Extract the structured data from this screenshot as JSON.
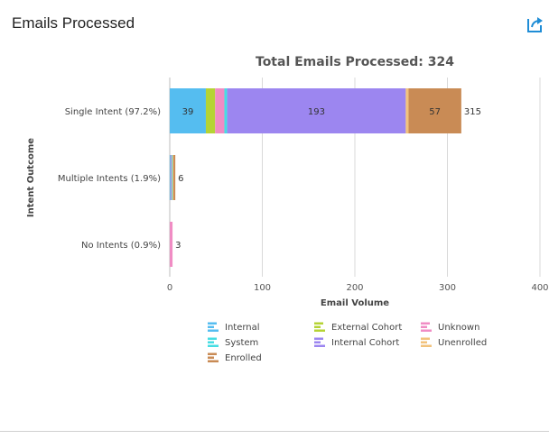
{
  "panel": {
    "title": "Emails Processed",
    "export_icon": "share-export-icon",
    "accent": "#1f8dd6"
  },
  "chart_data": {
    "type": "bar",
    "orientation": "horizontal",
    "stacked": true,
    "title": "Total Emails Processed: 324",
    "xlabel": "Email Volume",
    "ylabel": "Intent Outcome",
    "xlim": [
      0,
      400
    ],
    "xticks": [
      0,
      100,
      200,
      300,
      400
    ],
    "grid": true,
    "legend_position": "bottom",
    "categories": [
      "Single Intent (97.2%)",
      "Multiple Intents (1.9%)",
      "No Intents (0.9%)"
    ],
    "totals": [
      315,
      6,
      3
    ],
    "series": [
      {
        "name": "Internal",
        "color": "#55bdf0",
        "values": [
          39,
          1,
          0
        ]
      },
      {
        "name": "External Cohort",
        "color": "#b5d334",
        "values": [
          10,
          0,
          0
        ]
      },
      {
        "name": "Unknown",
        "color": "#f08cc4",
        "values": [
          10,
          1,
          3
        ]
      },
      {
        "name": "System",
        "color": "#47dde3",
        "values": [
          3,
          1,
          0
        ]
      },
      {
        "name": "Internal Cohort",
        "color": "#9c86f0",
        "values": [
          193,
          0,
          0
        ]
      },
      {
        "name": "Unenrolled",
        "color": "#f2c27b",
        "values": [
          3,
          1,
          0
        ]
      },
      {
        "name": "Enrolled",
        "color": "#c98b55",
        "values": [
          57,
          2,
          0
        ]
      }
    ],
    "legend_order": [
      "Internal",
      "External Cohort",
      "Unknown",
      "System",
      "Internal Cohort",
      "Unenrolled",
      "Enrolled"
    ]
  }
}
